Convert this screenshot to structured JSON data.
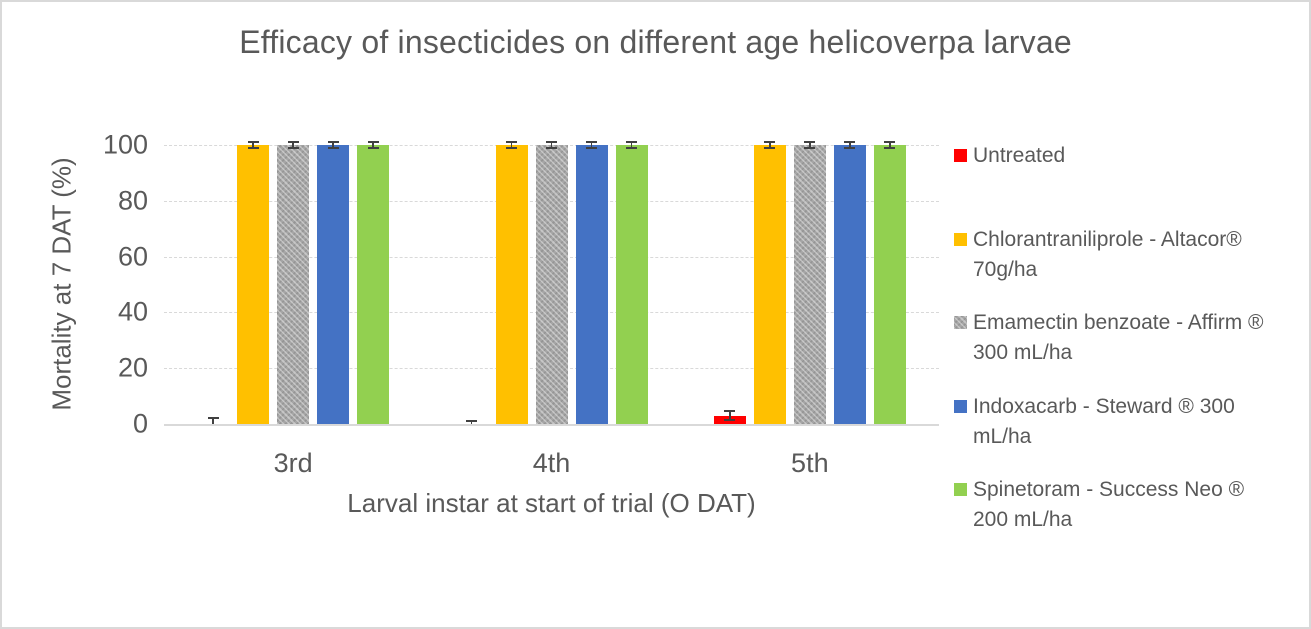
{
  "frame": {
    "background": "#FFFFFF",
    "border_color": "#D9D9D9"
  },
  "chart_data": {
    "type": "bar",
    "title": "Efficacy of insecticides on different age helicoverpa larvae",
    "xlabel": "Larval instar at start of trial (O DAT)",
    "ylabel": "Mortality at 7 DAT (%)",
    "ylim": [
      0,
      100
    ],
    "yticks": [
      0,
      20,
      40,
      60,
      80,
      100
    ],
    "categories": [
      "3rd",
      "4th",
      "5th"
    ],
    "grid": "horizontal-dashed",
    "gridline_color": "#D9D9D9",
    "axis_text_color": "#595959",
    "error_bar_color": "#404040",
    "legend_position": "right",
    "has_error_bars": true,
    "series": [
      {
        "name": "Untreated",
        "color": "#FF0000",
        "pattern": "solid",
        "values": [
          0,
          0,
          3
        ],
        "errors": [
          2,
          1,
          1.5
        ]
      },
      {
        "name": "Chlorantraniliprole - Altacor® 70g/ha",
        "color": "#FFC000",
        "pattern": "solid",
        "values": [
          100,
          100,
          100
        ],
        "errors": [
          1,
          1,
          1
        ]
      },
      {
        "name": "Emamectin benzoate - Affirm ® 300 mL/ha",
        "color": "#A6A6A6",
        "pattern": "dotted",
        "values": [
          100,
          100,
          100
        ],
        "errors": [
          1,
          1,
          1
        ]
      },
      {
        "name": "Indoxacarb - Steward ® 300 mL/ha",
        "color": "#4472C4",
        "pattern": "solid",
        "values": [
          100,
          100,
          100
        ],
        "errors": [
          1,
          1,
          1
        ]
      },
      {
        "name": "Spinetoram - Success Neo ® 200 mL/ha",
        "color": "#92D050",
        "pattern": "solid",
        "values": [
          100,
          100,
          100
        ],
        "errors": [
          1,
          1,
          1
        ]
      }
    ]
  }
}
